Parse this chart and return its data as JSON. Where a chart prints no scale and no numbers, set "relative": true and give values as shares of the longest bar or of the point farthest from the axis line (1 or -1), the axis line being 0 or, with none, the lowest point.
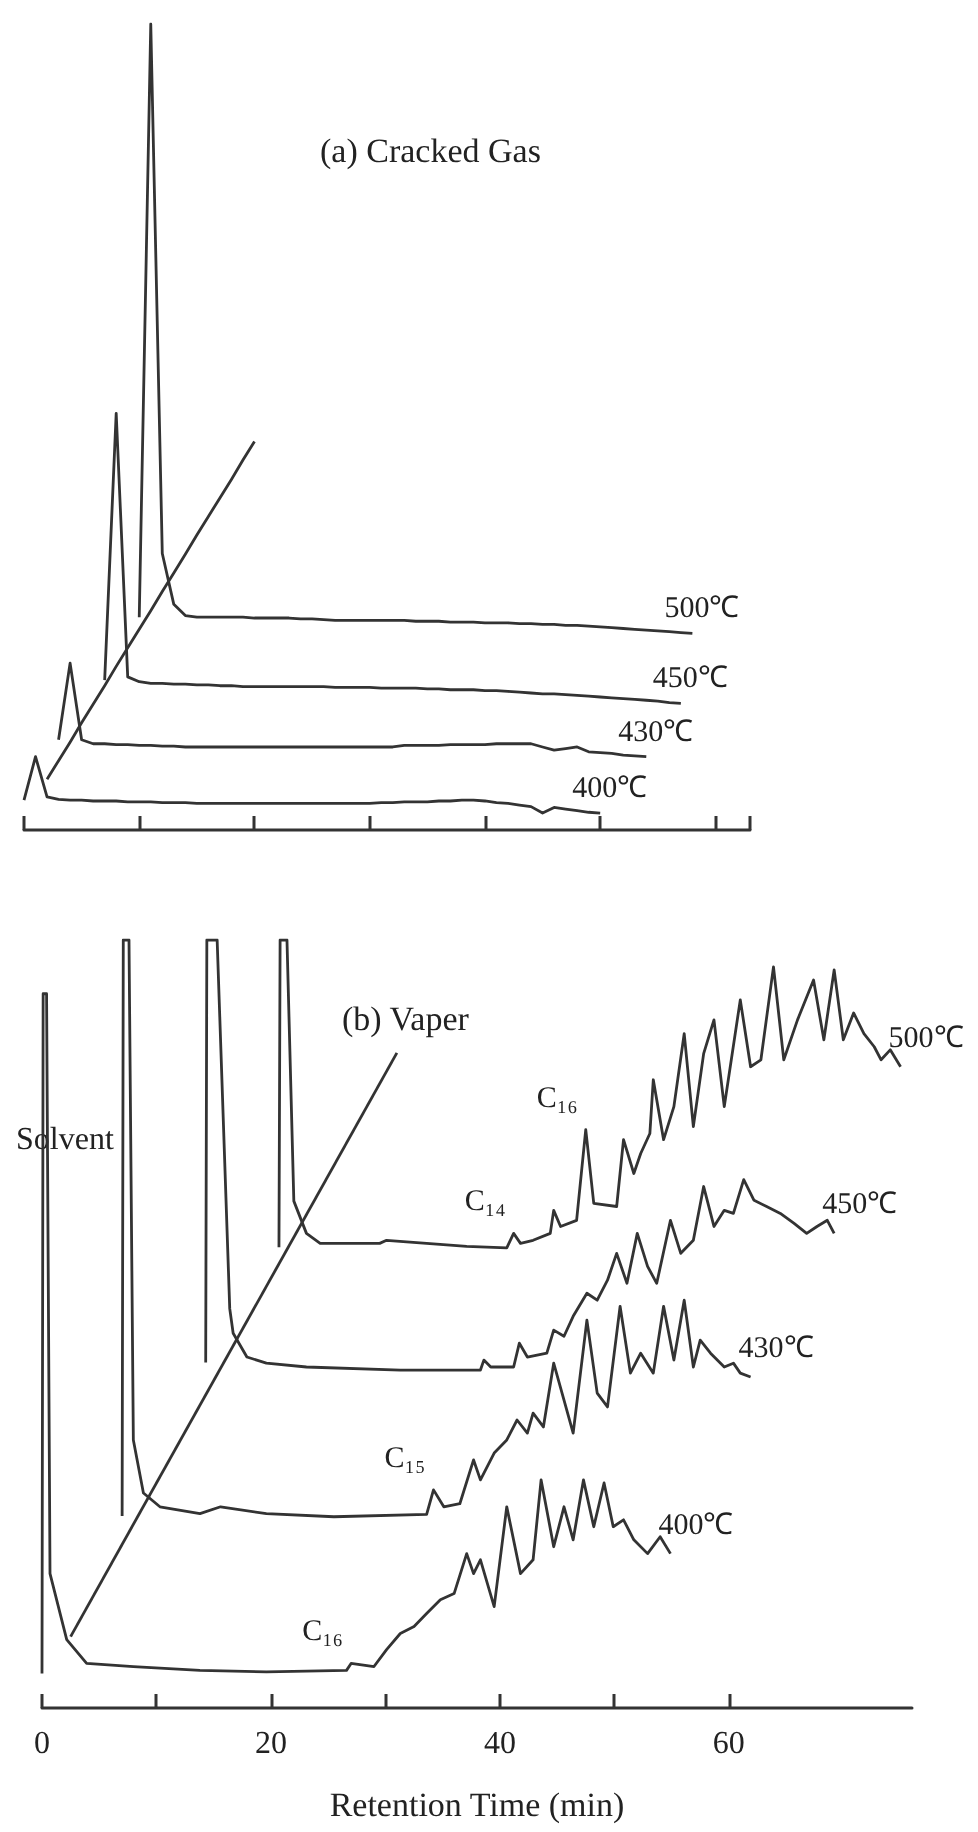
{
  "chart_data": [
    {
      "type": "line",
      "title": "(a) Cracked Gas",
      "relative": true,
      "categories": [
        null,
        null,
        null,
        null,
        null,
        null,
        null,
        null,
        null,
        null,
        null,
        null,
        null,
        null,
        null,
        null,
        null,
        null,
        null,
        null,
        null,
        null,
        null,
        null,
        null,
        null,
        null,
        null,
        null,
        null,
        null,
        null,
        null,
        null,
        null,
        null,
        null,
        null,
        null,
        null,
        null,
        null,
        null,
        null,
        null,
        null,
        null,
        null,
        null,
        null,
        null,
        null,
        null,
        null,
        null,
        null,
        null,
        null,
        null,
        null,
        null,
        null,
        null,
        null
      ],
      "tick_labels": false,
      "legend": false,
      "grid": false,
      "marker": "none",
      "series": [
        {
          "name": "400℃",
          "color": "#333333",
          "values": [
            0.037,
            0.091,
            0.041,
            0.038,
            0.037,
            0.037,
            0.036,
            0.036,
            0.036,
            0.035,
            0.035,
            0.035,
            0.034,
            0.034,
            0.034,
            0.033,
            0.033,
            0.033,
            0.033,
            0.033,
            0.033,
            0.033,
            0.033,
            0.033,
            0.033,
            0.033,
            0.033,
            0.033,
            0.033,
            0.033,
            0.033,
            0.034,
            0.034,
            0.035,
            0.035,
            0.035,
            0.036,
            0.036,
            0.037,
            0.037,
            0.036,
            0.034,
            0.033,
            0.031,
            0.029,
            0.021,
            0.028,
            0.026,
            0.024,
            0.022,
            0.021,
            null,
            null,
            null,
            null,
            null,
            null,
            null,
            null,
            null,
            null,
            null,
            null,
            null
          ]
        },
        {
          "name": "430℃",
          "color": "#333333",
          "values": [
            null,
            null,
            null,
            0.112,
            0.207,
            0.112,
            0.107,
            0.107,
            0.106,
            0.106,
            0.105,
            0.105,
            0.104,
            0.104,
            0.103,
            0.103,
            0.103,
            0.103,
            0.103,
            0.103,
            0.103,
            0.103,
            0.103,
            0.103,
            0.103,
            0.103,
            0.103,
            0.103,
            0.103,
            0.103,
            0.103,
            0.103,
            0.103,
            0.105,
            0.105,
            0.105,
            0.105,
            0.106,
            0.106,
            0.106,
            0.106,
            0.107,
            0.107,
            0.107,
            0.107,
            0.103,
            0.099,
            0.101,
            0.103,
            0.097,
            0.096,
            0.095,
            0.093,
            0.092,
            0.091,
            null,
            null,
            null,
            null,
            null,
            null,
            null,
            null,
            null
          ]
        },
        {
          "name": "450℃",
          "color": "#333333",
          "values": [
            null,
            null,
            null,
            null,
            null,
            null,
            null,
            0.186,
            0.517,
            0.19,
            0.184,
            0.182,
            0.182,
            0.181,
            0.181,
            0.18,
            0.18,
            0.179,
            0.179,
            0.178,
            0.178,
            0.178,
            0.178,
            0.178,
            0.178,
            0.178,
            0.178,
            0.177,
            0.177,
            0.177,
            0.177,
            0.176,
            0.176,
            0.176,
            0.176,
            0.175,
            0.175,
            0.174,
            0.174,
            0.174,
            0.173,
            0.173,
            0.172,
            0.171,
            0.17,
            0.169,
            0.169,
            0.168,
            0.167,
            0.166,
            0.165,
            0.164,
            0.163,
            0.162,
            0.161,
            0.16,
            0.158,
            0.157,
            null,
            null,
            null,
            null,
            null,
            null
          ]
        },
        {
          "name": "500℃",
          "color": "#333333",
          "values": [
            null,
            null,
            null,
            null,
            null,
            null,
            null,
            null,
            null,
            null,
            0.264,
            1.0,
            0.343,
            0.28,
            0.266,
            0.264,
            0.264,
            0.264,
            0.264,
            0.264,
            0.263,
            0.263,
            0.263,
            0.263,
            0.262,
            0.262,
            0.261,
            0.26,
            0.26,
            0.26,
            0.26,
            0.26,
            0.26,
            0.26,
            0.259,
            0.259,
            0.259,
            0.258,
            0.258,
            0.258,
            0.257,
            0.257,
            0.257,
            0.256,
            0.256,
            0.255,
            0.255,
            0.254,
            0.254,
            0.253,
            0.252,
            0.251,
            0.25,
            0.249,
            0.248,
            0.247,
            0.246,
            0.245,
            0.244,
            null,
            null,
            null,
            null,
            null
          ]
        },
        {
          "color": "#333333",
          "values": [
            null,
            null,
            0.063,
            0.086,
            0.109,
            0.133,
            0.156,
            0.179,
            0.203,
            0.226,
            0.249,
            0.272,
            0.296,
            0.319,
            0.342,
            0.366,
            0.389,
            0.412,
            0.435,
            0.459,
            0.482,
            null,
            null,
            null,
            null,
            null,
            null,
            null,
            null,
            null,
            null,
            null,
            null,
            null,
            null,
            null,
            null,
            null,
            null,
            null,
            null,
            null,
            null,
            null,
            null,
            null,
            null,
            null,
            null,
            null,
            null,
            null,
            null,
            null,
            null,
            null,
            null,
            null,
            null,
            null,
            null,
            null,
            null,
            null
          ]
        }
      ]
    },
    {
      "type": "line",
      "title": "(b) Vaper",
      "xlabel": "Retention Time (min)",
      "relative": true,
      "xlim": [
        0,
        76
      ],
      "xticks": [
        0,
        {
          "value": 10,
          "label": null
        },
        20,
        {
          "value": 30,
          "label": null
        },
        40,
        {
          "value": 50,
          "label": null
        },
        60
      ],
      "legend": false,
      "grid": false,
      "marker": "none",
      "annotations": [
        "Solvent",
        {
          "text": "C₁₆",
          "x": 27.0,
          "y": 0.058
        },
        {
          "text": "C₁₅",
          "x": 34.2,
          "y": 0.284
        },
        {
          "text": "C₁₄",
          "x": 41.2,
          "y": 0.618
        },
        {
          "text": "C₁₆",
          "x": 47.5,
          "y": 0.753
        }
      ],
      "series": [
        {
          "name": "400℃",
          "color": "#333333",
          "x": [
            0,
            0.1,
            0.4,
            0.7,
            2.16,
            3.9,
            7.98,
            13.8,
            19.6,
            26.6,
            27.0,
            29.0,
            30.1,
            31.3,
            32.5,
            33.6,
            34.8,
            36.0,
            37.1,
            37.7,
            38.3,
            39.5,
            40.6,
            41.8,
            42.9,
            43.6,
            44.7,
            45.6,
            46.4,
            47.3,
            48.2,
            49.1,
            49.9,
            50.8,
            51.7,
            52.9,
            54.0,
            54.9
          ],
          "values": [
            0.045,
            0.93,
            0.93,
            0.175,
            0.089,
            0.058,
            0.054,
            0.049,
            0.047,
            0.049,
            0.058,
            0.054,
            0.076,
            0.097,
            0.106,
            0.123,
            0.141,
            0.149,
            0.201,
            0.175,
            0.193,
            0.132,
            0.262,
            0.175,
            0.193,
            0.297,
            0.21,
            0.262,
            0.219,
            0.297,
            0.236,
            0.293,
            0.236,
            0.245,
            0.219,
            0.201,
            0.223,
            0.201
          ]
        },
        {
          "name": "430℃",
          "color": "#333333",
          "x": [
            7.0,
            7.1,
            7.6,
            7.98,
            8.86,
            10.3,
            13.8,
            15.6,
            19.6,
            25.5,
            33.6,
            34.2,
            35.1,
            36.5,
            37.7,
            38.3,
            39.5,
            40.6,
            41.5,
            42.4,
            42.9,
            43.8,
            44.7,
            45.6,
            46.4,
            47.6,
            48.5,
            49.4,
            50.5,
            51.4,
            52.3,
            53.4,
            54.3,
            55.2,
            56.1,
            56.9,
            57.5,
            58.4,
            59.6,
            60.4,
            61.0,
            61.9
          ],
          "values": [
            0.25,
            1.0,
            1.0,
            0.349,
            0.28,
            0.262,
            0.253,
            0.262,
            0.253,
            0.249,
            0.252,
            0.284,
            0.262,
            0.266,
            0.323,
            0.297,
            0.332,
            0.349,
            0.375,
            0.358,
            0.384,
            0.366,
            0.449,
            0.401,
            0.358,
            0.505,
            0.41,
            0.392,
            0.523,
            0.436,
            0.462,
            0.436,
            0.523,
            0.453,
            0.531,
            0.444,
            0.479,
            0.462,
            0.444,
            0.449,
            0.436,
            0.431
          ]
        },
        {
          "name": "450℃",
          "color": "#333333",
          "x": [
            14.3,
            14.4,
            15.3,
            16.4,
            16.7,
            17.9,
            19.6,
            23.1,
            31.3,
            38.3,
            38.6,
            39.2,
            41.2,
            41.7,
            42.4,
            44.1,
            44.7,
            45.6,
            46.4,
            47.6,
            48.5,
            49.4,
            50.2,
            51.1,
            52.0,
            52.9,
            53.7,
            54.9,
            55.8,
            56.9,
            57.8,
            58.7,
            59.6,
            60.4,
            61.3,
            62.2,
            63.3,
            64.5,
            65.7,
            66.8,
            67.7,
            68.6,
            69.2
          ],
          "values": [
            0.45,
            1.0,
            1.0,
            0.52,
            0.488,
            0.457,
            0.449,
            0.444,
            0.44,
            0.44,
            0.453,
            0.444,
            0.444,
            0.475,
            0.457,
            0.462,
            0.492,
            0.484,
            0.51,
            0.54,
            0.531,
            0.557,
            0.592,
            0.553,
            0.618,
            0.575,
            0.553,
            0.635,
            0.592,
            0.609,
            0.679,
            0.627,
            0.648,
            0.644,
            0.688,
            0.661,
            0.653,
            0.644,
            0.631,
            0.618,
            0.627,
            0.635,
            0.618
          ]
        },
        {
          "name": "500℃",
          "color": "#333333",
          "x": [
            20.7,
            20.8,
            21.4,
            22.0,
            23.1,
            24.3,
            29.5,
            30.1,
            37.1,
            40.6,
            41.2,
            41.8,
            42.9,
            44.4,
            44.7,
            45.3,
            46.7,
            47.5,
            48.2,
            50.2,
            50.8,
            51.7,
            52.3,
            53.1,
            53.4,
            54.3,
            55.2,
            56.1,
            56.9,
            57.8,
            58.7,
            59.6,
            61.0,
            61.9,
            62.8,
            63.9,
            64.8,
            66.0,
            67.4,
            68.3,
            69.2,
            70.0,
            70.9,
            71.8,
            72.7,
            73.3,
            74.1,
            75.0
          ],
          "values": [
            0.6,
            1.0,
            1.0,
            0.66,
            0.618,
            0.605,
            0.605,
            0.609,
            0.601,
            0.599,
            0.618,
            0.605,
            0.609,
            0.618,
            0.648,
            0.627,
            0.635,
            0.753,
            0.657,
            0.653,
            0.74,
            0.696,
            0.722,
            0.748,
            0.818,
            0.74,
            0.783,
            0.878,
            0.757,
            0.852,
            0.896,
            0.783,
            0.922,
            0.835,
            0.844,
            0.965,
            0.844,
            0.896,
            0.948,
            0.87,
            0.961,
            0.87,
            0.905,
            0.878,
            0.861,
            0.844,
            0.857,
            0.835
          ]
        },
        {
          "color": "#333333",
          "x": [
            2.5,
            31.0
          ],
          "values": [
            0.093,
            0.853
          ]
        }
      ]
    }
  ]
}
